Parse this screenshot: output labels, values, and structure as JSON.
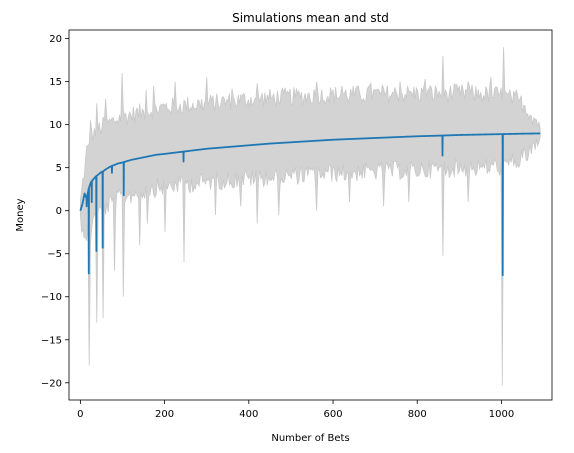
{
  "chart_data": {
    "type": "line",
    "title": "Simulations mean and std",
    "xlabel": "Number of Bets",
    "ylabel": "Money",
    "xlim": [
      -27,
      1120
    ],
    "ylim": [
      -22,
      21
    ],
    "xticks": [
      0,
      200,
      400,
      600,
      800,
      1000
    ],
    "yticks": [
      -20,
      -15,
      -10,
      -5,
      0,
      5,
      10,
      15,
      20
    ],
    "grid": false,
    "legend": "none",
    "colors": {
      "mean": "#1f77b4",
      "band": "#d3d3d3",
      "band_edge": "#c8c8c8"
    },
    "series": [
      {
        "kind": "mean",
        "x": [
          0,
          5,
          10,
          15,
          20,
          25,
          30,
          35,
          40,
          45,
          50,
          55,
          60,
          70,
          80,
          90,
          100,
          120,
          140,
          160,
          180,
          200,
          250,
          300,
          350,
          400,
          450,
          500,
          550,
          600,
          650,
          700,
          750,
          800,
          850,
          900,
          950,
          1000,
          1050,
          1092
        ],
        "y": [
          0,
          0.8,
          2.0,
          1.4,
          2.6,
          3.3,
          3.6,
          3.9,
          4.1,
          4.3,
          4.5,
          4.6,
          4.8,
          5.1,
          5.3,
          5.5,
          5.6,
          5.9,
          6.1,
          6.3,
          6.5,
          6.6,
          6.9,
          7.2,
          7.4,
          7.6,
          7.8,
          7.95,
          8.1,
          8.25,
          8.35,
          8.45,
          8.55,
          8.65,
          8.72,
          8.8,
          8.85,
          8.9,
          8.95,
          8.98
        ],
        "dips": [
          [
            15,
            0.5
          ],
          [
            20,
            -7.3
          ],
          [
            27,
            1.0
          ],
          [
            38,
            -4.7
          ],
          [
            53,
            -4.3
          ],
          [
            75,
            4.4
          ],
          [
            103,
            1.8
          ],
          [
            245,
            5.7
          ],
          [
            860,
            6.4
          ],
          [
            1003,
            -7.5
          ]
        ]
      },
      {
        "kind": "std_band",
        "x": [
          0,
          10,
          20,
          30,
          50,
          80,
          100,
          150,
          200,
          300,
          400,
          500,
          600,
          700,
          800,
          900,
          1000,
          1050,
          1092
        ],
        "upper": [
          0.5,
          4.5,
          7.0,
          8.5,
          9.3,
          10.0,
          10.5,
          11.0,
          11.6,
          12.0,
          12.5,
          12.8,
          13.0,
          13.1,
          13.2,
          13.2,
          13.0,
          12.0,
          9.5
        ],
        "lower": [
          -0.5,
          -2.0,
          -1.5,
          -0.5,
          0.5,
          1.5,
          2.0,
          2.8,
          3.3,
          3.8,
          4.2,
          4.5,
          4.8,
          5.0,
          5.2,
          5.4,
          5.6,
          6.5,
          8.5
        ],
        "spikes_up": [
          [
            15,
            7.5
          ],
          [
            25,
            10.5
          ],
          [
            40,
            12.5
          ],
          [
            60,
            13.0
          ],
          [
            100,
            16.0
          ],
          [
            155,
            14.0
          ],
          [
            175,
            14.5
          ],
          [
            225,
            15.0
          ],
          [
            300,
            15.5
          ],
          [
            360,
            14.2
          ],
          [
            420,
            14.8
          ],
          [
            480,
            14.0
          ],
          [
            560,
            15.0
          ],
          [
            620,
            14.5
          ],
          [
            690,
            14.8
          ],
          [
            760,
            15.0
          ],
          [
            820,
            15.3
          ],
          [
            862,
            18.0
          ],
          [
            920,
            15.0
          ],
          [
            975,
            15.5
          ],
          [
            1005,
            19.0
          ],
          [
            1035,
            14.0
          ]
        ],
        "spikes_down": [
          [
            15,
            -3.5
          ],
          [
            20,
            -18.0
          ],
          [
            25,
            -4.0
          ],
          [
            40,
            -13.0
          ],
          [
            55,
            -12.5
          ],
          [
            80,
            -7.0
          ],
          [
            103,
            -10.0
          ],
          [
            140,
            -4.0
          ],
          [
            160,
            -1.5
          ],
          [
            200,
            -2.5
          ],
          [
            245,
            -6.0
          ],
          [
            320,
            -0.5
          ],
          [
            380,
            0.5
          ],
          [
            420,
            -1.5
          ],
          [
            470,
            -0.5
          ],
          [
            560,
            0.0
          ],
          [
            640,
            1.0
          ],
          [
            720,
            0.5
          ],
          [
            780,
            1.0
          ],
          [
            860,
            -5.3
          ],
          [
            920,
            1.0
          ],
          [
            1003,
            -20.3
          ]
        ]
      }
    ]
  }
}
